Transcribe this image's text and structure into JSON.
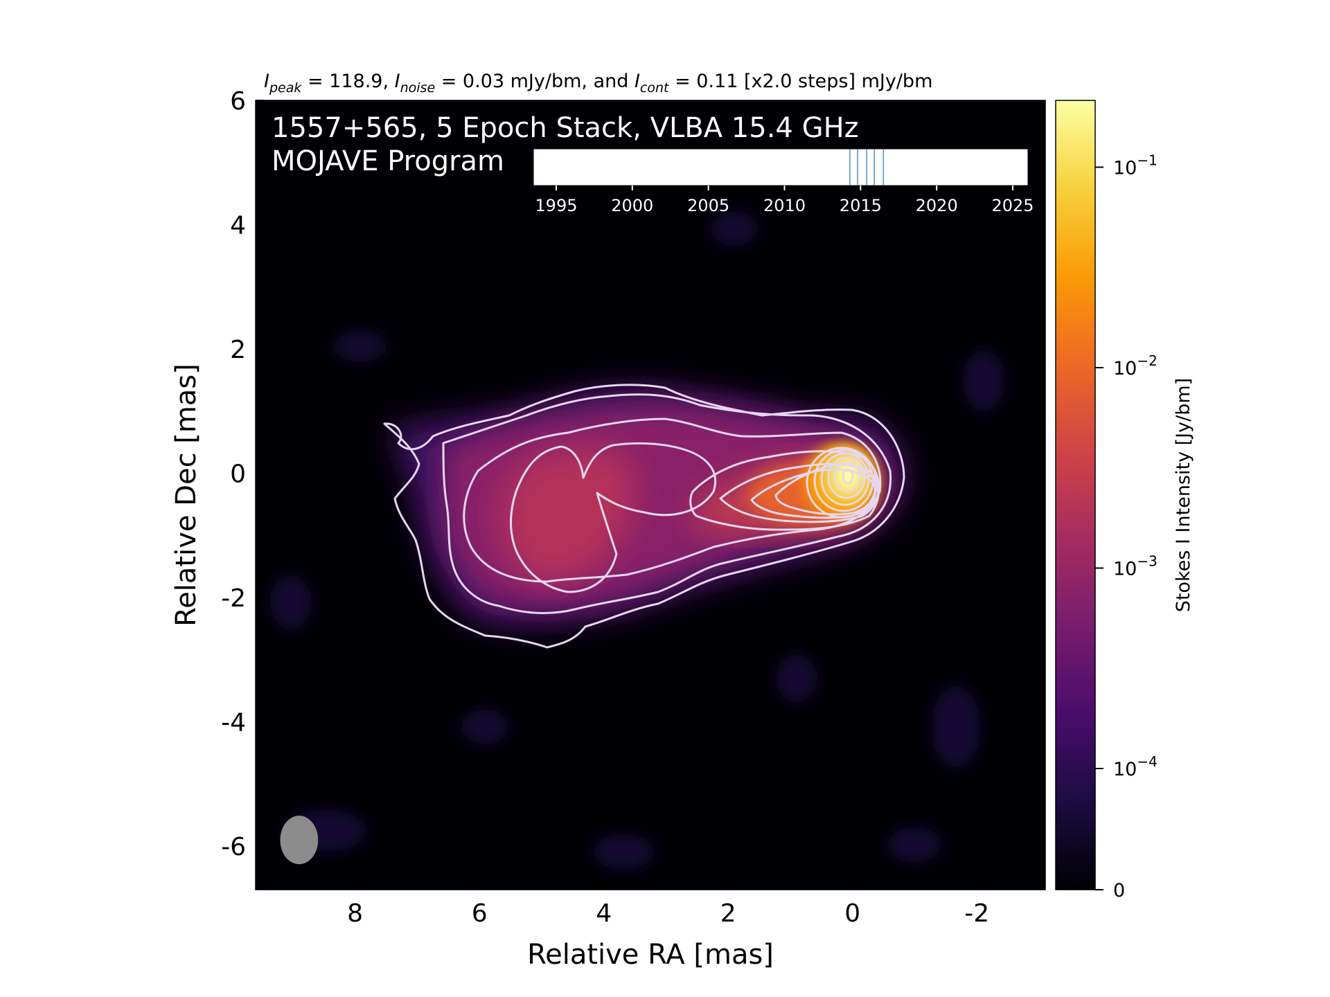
{
  "chart_data": {
    "type": "heatmap",
    "header": {
      "peak_sym": "I",
      "peak_sub": "peak",
      "peak_val": " = 118.9, ",
      "noise_sym": "I",
      "noise_sub": "noise",
      "noise_val": " = 0.03 mJy/bm, and ",
      "cont_sym": "I",
      "cont_sub": "cont",
      "cont_val": " = 0.11 [x2.0 steps] mJy/bm"
    },
    "title_line1": "1557+565, 5 Epoch Stack, VLBA 15.4 GHz",
    "title_line2": "MOJAVE Program",
    "xlabel": "Relative RA [mas]",
    "ylabel": "Relative Dec [mas]",
    "xlim": [
      9.6,
      -3.1
    ],
    "ylim": [
      -6.7,
      6.0
    ],
    "x_ticks": [
      8,
      6,
      4,
      2,
      0,
      -2
    ],
    "y_ticks": [
      6,
      4,
      2,
      0,
      -2,
      -4,
      -6
    ],
    "grid": false,
    "colorbar": {
      "label": "Stokes I Intensity [Jy/bm]",
      "scale": "log",
      "ticks": [
        {
          "value": 0.1,
          "base": "10",
          "exp": "−1"
        },
        {
          "value": 0.01,
          "base": "10",
          "exp": "−2"
        },
        {
          "value": 0.001,
          "base": "10",
          "exp": "−3"
        },
        {
          "value": 0.0001,
          "base": "10",
          "exp": "−4"
        },
        {
          "value": 0,
          "base": "0",
          "exp": ""
        }
      ],
      "colors": [
        "#000004",
        "#1b0c41",
        "#4a0c6b",
        "#781c6d",
        "#a52c60",
        "#cf4446",
        "#ed6925",
        "#fb9b06",
        "#f7d13d",
        "#fcffa4"
      ]
    },
    "epoch_timeline": {
      "xlim": [
        1993.5,
        2026.0
      ],
      "ticks": [
        1995,
        2000,
        2005,
        2010,
        2015,
        2020,
        2025
      ],
      "epochs": [
        2014.3,
        2014.8,
        2015.4,
        2015.9,
        2016.5
      ],
      "line_color": "#4a90c8"
    },
    "beam": {
      "major_mas": 0.78,
      "minor_mas": 0.61,
      "center": [
        8.9,
        -5.9
      ],
      "color": "#8c8c8c"
    },
    "peak_position": [
      0.0,
      0.0
    ]
  }
}
